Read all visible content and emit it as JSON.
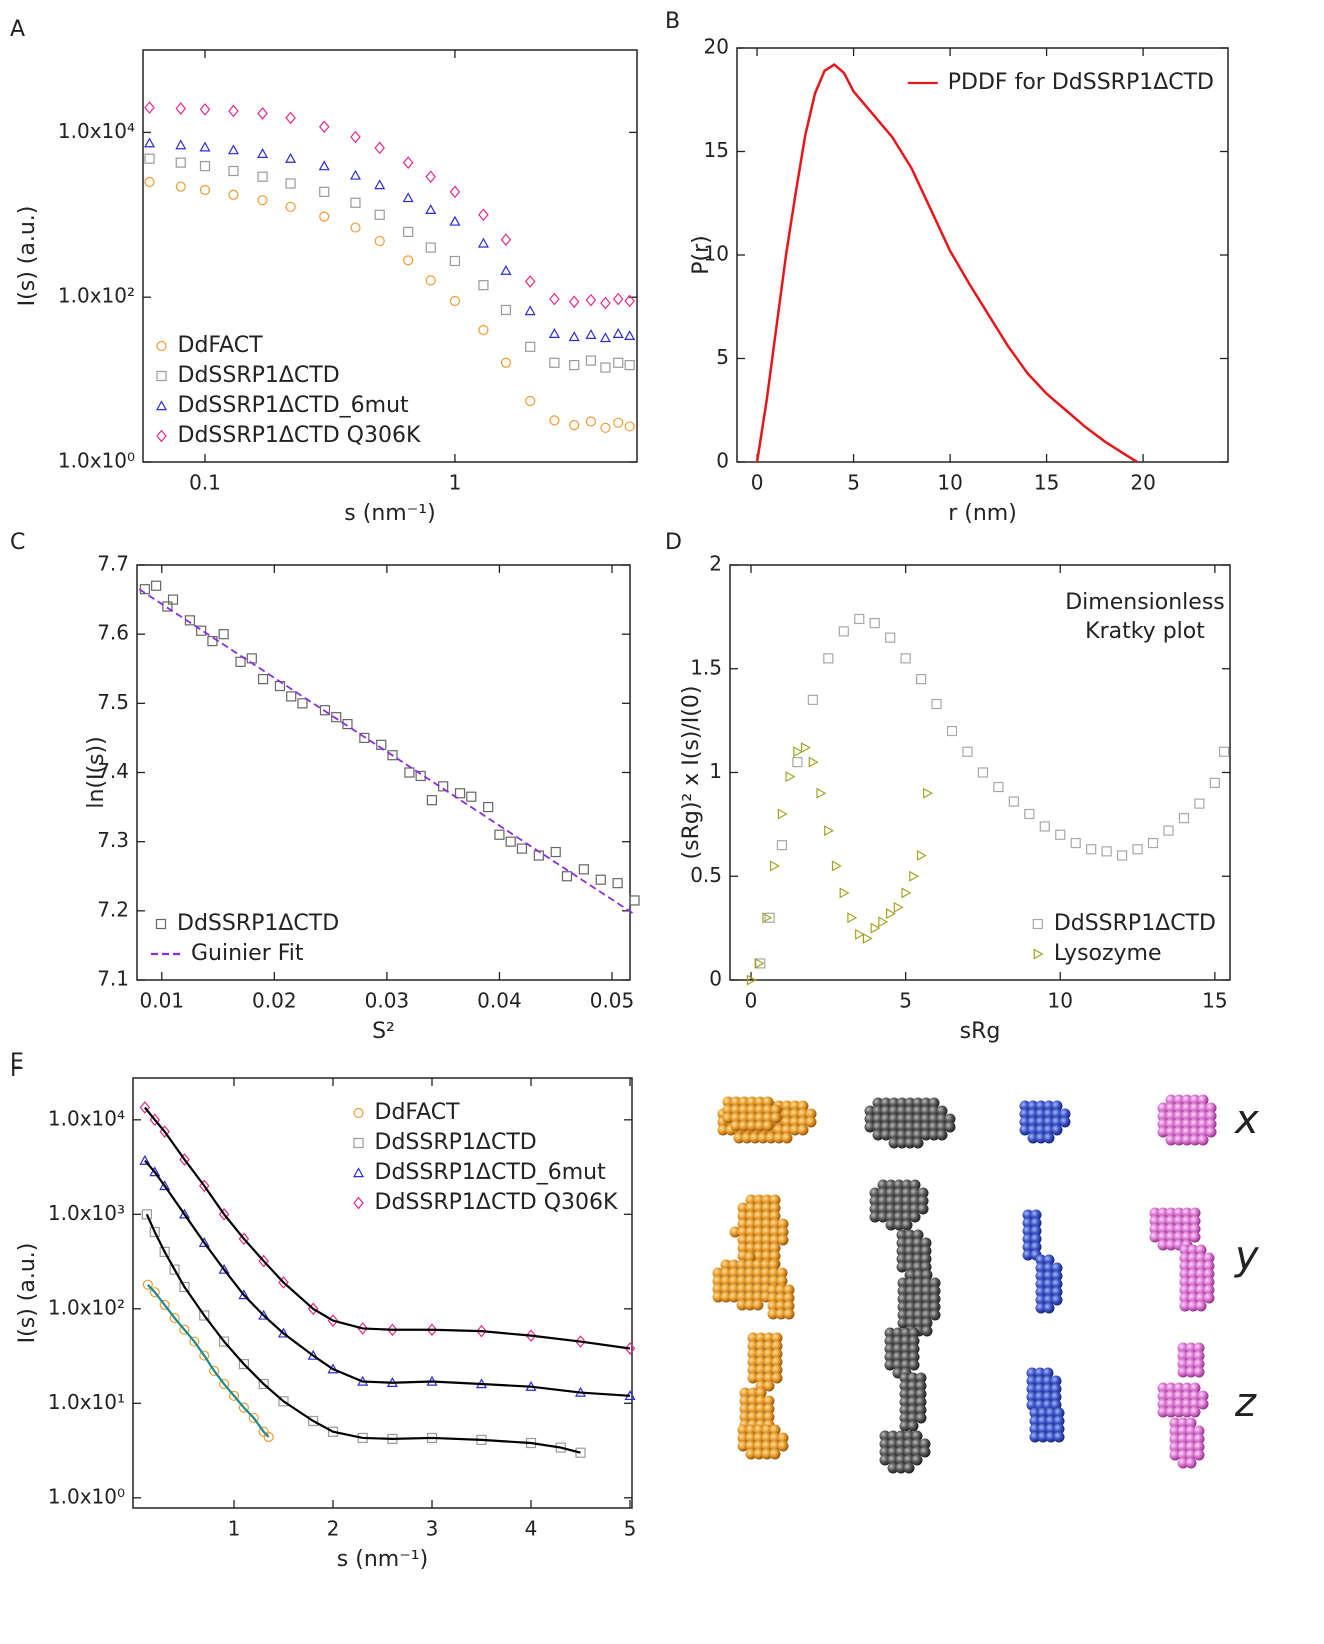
{
  "chart_data": [
    {
      "type": "scatter",
      "panel": "A",
      "xlabel": "s (nm⁻¹)",
      "ylabel": "I(s) (a.u.)",
      "xscale": "log",
      "yscale": "log",
      "xlim": [
        0.0565,
        5.35
      ],
      "ylim": [
        1,
        100000
      ],
      "xticks": [
        0.1,
        1
      ],
      "yticks": [
        {
          "value": 1,
          "label": "1.0x10⁰"
        },
        {
          "value": 100,
          "label": "1.0x10²"
        },
        {
          "value": 10000,
          "label": "1.0x10⁴"
        }
      ],
      "legend": "lower left",
      "x": [
        0.06,
        0.08,
        0.1,
        0.13,
        0.17,
        0.22,
        0.3,
        0.4,
        0.5,
        0.65,
        0.8,
        1,
        1.3,
        1.6,
        2,
        2.5,
        3,
        3.5,
        4,
        4.5,
        5
      ],
      "series": [
        {
          "name": "DdFACT",
          "color": "#f39a2e",
          "marker": "o",
          "values": [
            2500,
            2200,
            2000,
            1750,
            1500,
            1250,
            950,
            700,
            480,
            280,
            160,
            90,
            40,
            16,
            5.5,
            3.2,
            2.8,
            3.1,
            2.6,
            3,
            2.7
          ]
        },
        {
          "name": "DdSSRP1ΔCTD",
          "color": "#9a9a9a",
          "marker": "s",
          "values": [
            4800,
            4300,
            3900,
            3400,
            2900,
            2400,
            1900,
            1400,
            1000,
            620,
            400,
            275,
            140,
            70,
            25,
            16,
            15,
            17,
            14,
            16,
            15
          ]
        },
        {
          "name": "DdSSRP1ΔCTD_6mut",
          "color": "#2a2ad8",
          "marker": "^",
          "values": [
            7400,
            7000,
            6600,
            6100,
            5500,
            4800,
            3900,
            3000,
            2300,
            1600,
            1150,
            830,
            450,
            210,
            68,
            36,
            33,
            35,
            32,
            36,
            34
          ]
        },
        {
          "name": "DdSSRP1ΔCTD Q306K",
          "color": "#e8288a",
          "marker": "D",
          "values": [
            20000,
            19500,
            19000,
            18200,
            17000,
            15000,
            11700,
            8800,
            6500,
            4300,
            2900,
            1900,
            1000,
            500,
            155,
            95,
            88,
            92,
            85,
            95,
            90
          ]
        }
      ]
    },
    {
      "type": "line",
      "panel": "B",
      "xlabel": "r (nm)",
      "ylabel": "P(r)",
      "xlim": [
        -1.04,
        24.4
      ],
      "ylim": [
        0,
        20
      ],
      "xticks": [
        0,
        5,
        10,
        15,
        20
      ],
      "yticks": [
        0,
        5,
        10,
        15,
        20
      ],
      "legend": "upper right",
      "series": [
        {
          "name": "PDDF for DdSSRP1ΔCTD",
          "color": "#e8161b",
          "x": [
            0,
            0.5,
            1,
            1.5,
            2,
            2.5,
            3,
            3.5,
            4,
            4.5,
            5,
            6,
            7,
            8,
            9,
            10,
            11,
            12,
            13,
            14,
            15,
            16,
            17,
            18,
            19,
            19.7
          ],
          "values": [
            0,
            3,
            6.5,
            10,
            13,
            15.8,
            17.8,
            18.9,
            19.2,
            18.8,
            17.9,
            16.8,
            15.7,
            14.2,
            12.2,
            10.2,
            8.6,
            7.1,
            5.6,
            4.3,
            3.3,
            2.5,
            1.7,
            1.0,
            0.4,
            0
          ]
        }
      ]
    },
    {
      "type": "scatter",
      "panel": "C",
      "xlabel": "S²",
      "ylabel": "ln(I(s))",
      "xlim": [
        0.0078,
        0.0516
      ],
      "ylim": [
        7.1,
        7.7
      ],
      "xticks": [
        0.01,
        0.02,
        0.03,
        0.04,
        0.05
      ],
      "yticks": [
        7.1,
        7.2,
        7.3,
        7.4,
        7.5,
        7.6,
        7.7
      ],
      "legend": "lower left",
      "series": [
        {
          "name": "DdSSRP1ΔCTD",
          "color": "#666666",
          "marker": "s",
          "x": [
            0.0085,
            0.0095,
            0.0105,
            0.011,
            0.0125,
            0.0135,
            0.0145,
            0.0155,
            0.017,
            0.018,
            0.019,
            0.0205,
            0.0215,
            0.0225,
            0.0245,
            0.0255,
            0.0265,
            0.028,
            0.0295,
            0.0305,
            0.032,
            0.033,
            0.034,
            0.035,
            0.0365,
            0.0375,
            0.039,
            0.04,
            0.041,
            0.042,
            0.0435,
            0.045,
            0.046,
            0.0475,
            0.049,
            0.0505,
            0.052
          ],
          "values": [
            7.665,
            7.67,
            7.64,
            7.65,
            7.62,
            7.605,
            7.59,
            7.6,
            7.56,
            7.565,
            7.535,
            7.525,
            7.51,
            7.5,
            7.49,
            7.48,
            7.47,
            7.45,
            7.44,
            7.425,
            7.4,
            7.395,
            7.36,
            7.38,
            7.37,
            7.365,
            7.35,
            7.31,
            7.3,
            7.29,
            7.28,
            7.285,
            7.25,
            7.26,
            7.245,
            7.24,
            7.215
          ]
        },
        {
          "name": "Guinier Fit",
          "color": "#8a2be2",
          "linestyle": "dashed",
          "x": [
            0.008,
            0.052
          ],
          "values": [
            7.665,
            7.195
          ]
        }
      ]
    },
    {
      "type": "scatter",
      "panel": "D",
      "xlabel": "sRg",
      "ylabel": "(sRg)² x I(s)/I(0)",
      "annotation": [
        "Dimensionless",
        "Kratky plot"
      ],
      "xlim": [
        -0.68,
        15.49
      ],
      "ylim": [
        0,
        2
      ],
      "xticks": [
        0,
        5,
        10,
        15
      ],
      "yticks": [
        0,
        0.5,
        1,
        1.5,
        2
      ],
      "legend": "lower right",
      "series": [
        {
          "name": "DdSSRP1ΔCTD",
          "color": "#a8a8a8",
          "marker": "s",
          "x": [
            0.3,
            0.6,
            1,
            1.5,
            2,
            2.5,
            3,
            3.5,
            4,
            4.5,
            5,
            5.5,
            6,
            6.5,
            7,
            7.5,
            8,
            8.5,
            9,
            9.5,
            10,
            10.5,
            11,
            11.5,
            12,
            12.5,
            13,
            13.5,
            14,
            14.5,
            15,
            15.3
          ],
          "values": [
            0.08,
            0.3,
            0.65,
            1.05,
            1.35,
            1.55,
            1.68,
            1.74,
            1.72,
            1.65,
            1.55,
            1.45,
            1.33,
            1.2,
            1.1,
            1.0,
            0.93,
            0.86,
            0.8,
            0.74,
            0.7,
            0.66,
            0.63,
            0.62,
            0.6,
            0.63,
            0.66,
            0.72,
            0.78,
            0.85,
            0.95,
            1.1
          ]
        },
        {
          "name": "Lysozyme",
          "color": "#a3a323",
          "marker": ">",
          "x": [
            0,
            0.25,
            0.5,
            0.75,
            1,
            1.25,
            1.5,
            1.75,
            2,
            2.25,
            2.5,
            2.75,
            3,
            3.25,
            3.5,
            3.75,
            4,
            4.25,
            4.5,
            4.75,
            5,
            5.25,
            5.5,
            5.7
          ],
          "values": [
            0,
            0.08,
            0.3,
            0.55,
            0.8,
            0.98,
            1.1,
            1.12,
            1.05,
            0.9,
            0.72,
            0.55,
            0.42,
            0.3,
            0.22,
            0.2,
            0.25,
            0.28,
            0.32,
            0.35,
            0.42,
            0.5,
            0.6,
            0.9
          ]
        }
      ]
    },
    {
      "type": "scatter",
      "panel": "E",
      "xlabel": "s (nm⁻¹)",
      "ylabel": "I(s) (a.u.)",
      "yscale": "log",
      "xlim": [
        -0.02,
        5.02
      ],
      "ylim": [
        0.78,
        27700
      ],
      "xticks": [
        1,
        2,
        3,
        4,
        5
      ],
      "yticks": [
        {
          "value": 1,
          "label": "1.0x10⁰"
        },
        {
          "value": 10,
          "label": "1.0x10¹"
        },
        {
          "value": 100,
          "label": "1.0x10²"
        },
        {
          "value": 1000,
          "label": "1.0x10³"
        },
        {
          "value": 10000,
          "label": "1.0x10⁴"
        }
      ],
      "legend": "upper right",
      "series": [
        {
          "name": "DdFACT",
          "color": "#f39a2e",
          "marker": "o",
          "fit_color": "#1a8a8a",
          "x": [
            0.13,
            0.2,
            0.3,
            0.4,
            0.5,
            0.6,
            0.7,
            0.8,
            0.9,
            1.0,
            1.1,
            1.2,
            1.3,
            1.35
          ],
          "values": [
            180,
            150,
            110,
            80,
            60,
            45,
            32,
            22,
            16,
            12,
            9,
            7,
            5,
            4.4
          ]
        },
        {
          "name": "DdSSRP1ΔCTD",
          "color": "#9a9a9a",
          "marker": "s",
          "fit_color": "#000000",
          "x": [
            0.12,
            0.2,
            0.3,
            0.4,
            0.5,
            0.7,
            0.9,
            1.1,
            1.3,
            1.5,
            1.8,
            2.0,
            2.3,
            2.6,
            3,
            3.5,
            4,
            4.3,
            4.5
          ],
          "values": [
            1000,
            650,
            400,
            260,
            170,
            85,
            45,
            26,
            16,
            10.5,
            6.5,
            5,
            4.3,
            4.2,
            4.3,
            4.1,
            3.8,
            3.4,
            3
          ]
        },
        {
          "name": "DdSSRP1ΔCTD_6mut",
          "color": "#2a2ad8",
          "marker": "^",
          "fit_color": "#000000",
          "x": [
            0.1,
            0.2,
            0.3,
            0.5,
            0.7,
            0.9,
            1.1,
            1.3,
            1.5,
            1.8,
            2,
            2.3,
            2.6,
            3,
            3.5,
            4,
            4.5,
            5
          ],
          "values": [
            3700,
            2800,
            2000,
            1000,
            500,
            260,
            140,
            85,
            55,
            32,
            23,
            17,
            16.5,
            17,
            16,
            15,
            13,
            12
          ]
        },
        {
          "name": "DdSSRP1ΔCTD Q306K",
          "color": "#e8288a",
          "marker": "D",
          "fit_color": "#000000",
          "x": [
            0.1,
            0.2,
            0.3,
            0.5,
            0.7,
            0.9,
            1.1,
            1.3,
            1.5,
            1.8,
            2.0,
            2.3,
            2.6,
            3,
            3.5,
            4,
            4.5,
            5
          ],
          "values": [
            13500,
            10000,
            7500,
            3800,
            2000,
            1000,
            550,
            320,
            190,
            100,
            75,
            62,
            60,
            60,
            58,
            52,
            45,
            38
          ]
        }
      ]
    }
  ],
  "panel_f": {
    "panel": "F",
    "views": [
      "x",
      "y",
      "z"
    ]
  }
}
